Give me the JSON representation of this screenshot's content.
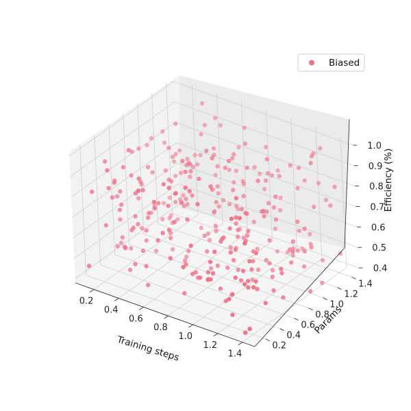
{
  "chart_data": {
    "type": "scatter",
    "projection": "3d",
    "xlabel": "Training steps",
    "ylabel": "Params",
    "zlabel": "Efficiency (%)",
    "xlim": [
      0.05,
      1.5
    ],
    "ylim": [
      0.05,
      1.5
    ],
    "zlim": [
      0.38,
      1.02
    ],
    "xticks": [
      "0.2",
      "0.4",
      "0.6",
      "0.8",
      "1.0",
      "1.2",
      "1.4"
    ],
    "yticks": [
      "0.2",
      "0.4",
      "0.6",
      "0.8",
      "1.0",
      "1.2",
      "1.4"
    ],
    "zticks": [
      "0.4",
      "0.5",
      "0.6",
      "0.7",
      "0.8",
      "0.9",
      "1.0"
    ],
    "grid": true,
    "legend": {
      "position": "top-right"
    },
    "series": [
      {
        "name": "Biased",
        "color": "#f0728a",
        "point_count": 300
      }
    ]
  }
}
